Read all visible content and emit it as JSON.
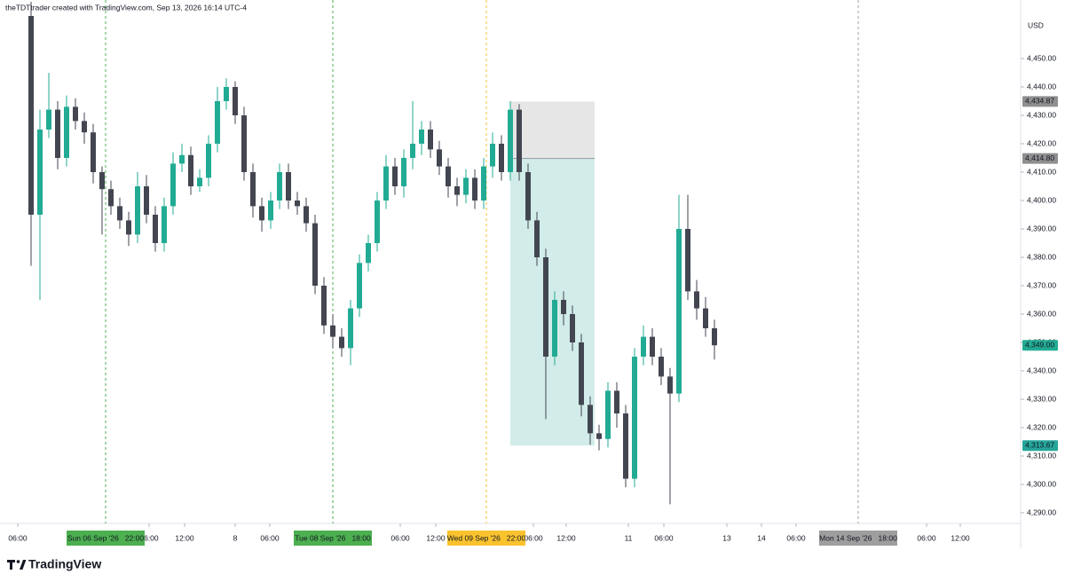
{
  "header": "theTDTtrader created with TradingView.com, Sep 13, 2026 16:14 UTC-4",
  "footer_brand": "TradingView",
  "chart_data": {
    "type": "candlestick",
    "currency": "USD",
    "up_color": "#22ab94",
    "down_color": "#434651",
    "xlim": [
      -3.5,
      111.5
    ],
    "ylim": [
      4286.25,
      4470.625
    ],
    "yticks": [
      {
        "value": 4290,
        "label": "4,290.00"
      },
      {
        "value": 4300,
        "label": "4,300.00"
      },
      {
        "value": 4310,
        "label": "4,310.00"
      },
      {
        "value": 4320,
        "label": "4,320.00"
      },
      {
        "value": 4330,
        "label": "4,330.00"
      },
      {
        "value": 4340,
        "label": "4,340.00"
      },
      {
        "value": 4350,
        "label": "4,350.00"
      },
      {
        "value": 4360,
        "label": "4,360.00"
      },
      {
        "value": 4370,
        "label": "4,370.00"
      },
      {
        "value": 4380,
        "label": "4,380.00"
      },
      {
        "value": 4390,
        "label": "4,390.00"
      },
      {
        "value": 4400,
        "label": "4,400.00"
      },
      {
        "value": 4410,
        "label": "4,410.00"
      },
      {
        "value": 4420,
        "label": "4,420.00"
      },
      {
        "value": 4430,
        "label": "4,430.00"
      },
      {
        "value": 4440,
        "label": "4,440.00"
      },
      {
        "value": 4450,
        "label": "4,450.00"
      }
    ],
    "xticks": [
      {
        "value": -1.5,
        "label": "06:00"
      },
      {
        "value": 13.3,
        "label": "06:00"
      },
      {
        "value": 17.3,
        "label": "12:00"
      },
      {
        "value": 23,
        "label": "8"
      },
      {
        "value": 26.9,
        "label": "06:00"
      },
      {
        "value": 41.6,
        "label": "06:00"
      },
      {
        "value": 45.6,
        "label": "12:00"
      },
      {
        "value": 56.6,
        "label": "06:00"
      },
      {
        "value": 60.3,
        "label": "12:00"
      },
      {
        "value": 67.3,
        "label": "11"
      },
      {
        "value": 71.3,
        "label": "06:00"
      },
      {
        "value": 78.4,
        "label": "13"
      },
      {
        "value": 82.3,
        "label": "14"
      },
      {
        "value": 86.2,
        "label": "06:00"
      },
      {
        "value": 100.9,
        "label": "06:00"
      },
      {
        "value": 104.7,
        "label": "12:00"
      }
    ],
    "session_marks": [
      {
        "value": 8.4,
        "label": "Sun 06 Sep '26   22:00",
        "color": "#4caf50"
      },
      {
        "value": 34,
        "label": "Tue 08 Sep '26   18:00",
        "color": "#4caf50"
      },
      {
        "value": 51.3,
        "label": "Wed 09 Sep '26   22:00",
        "color": "#f9c22e"
      },
      {
        "value": 93.2,
        "label": "Mon 14 Sep '26   18:00",
        "color": "#9e9e9e"
      }
    ],
    "open": [
      4465,
      4395,
      4425,
      4432,
      4415,
      4433,
      4428,
      4424,
      4410,
      4404,
      4398,
      4393,
      4388,
      4405,
      4395,
      4385,
      4398,
      4413,
      4416,
      4405,
      4408,
      4420,
      4435,
      4440,
      4430,
      4410,
      4398,
      4393,
      4400,
      4410,
      4400,
      4398,
      4392,
      4370,
      4356,
      4352,
      4348,
      4362,
      4378,
      4385,
      4400,
      4412,
      4405,
      4415,
      4420,
      4425,
      4418,
      4412,
      4405,
      4402,
      4408,
      4400,
      4412,
      4420,
      4410,
      4432,
      4410,
      4393,
      4380,
      4345,
      4365,
      4360,
      4350,
      4328,
      4318,
      4316,
      4333,
      4325,
      4302,
      4345,
      4352,
      4345,
      4338,
      4332,
      4390,
      4368,
      4362,
      4355
    ],
    "high": [
      4470,
      4432,
      4445,
      4435,
      4437,
      4436,
      4431,
      4427,
      4412,
      4407,
      4401,
      4396,
      4410,
      4409,
      4398,
      4401,
      4417,
      4420,
      4419,
      4411,
      4423,
      4440,
      4443,
      4442,
      4433,
      4413,
      4401,
      4403,
      4413,
      4413,
      4403,
      4401,
      4395,
      4373,
      4360,
      4355,
      4365,
      4381,
      4388,
      4403,
      4416,
      4415,
      4418,
      4435,
      4428,
      4428,
      4421,
      4415,
      4408,
      4411,
      4411,
      4415,
      4424,
      4423,
      4435,
      4434,
      4413,
      4396,
      4383,
      4368,
      4368,
      4363,
      4353,
      4331,
      4321,
      4336,
      4336,
      4328,
      4348,
      4356,
      4355,
      4348,
      4341,
      4402,
      4402,
      4372,
      4366,
      4358
    ],
    "low": [
      4377,
      4365,
      4422,
      4411,
      4412,
      4425,
      4420,
      4406,
      4388,
      4395,
      4390,
      4384,
      4385,
      4392,
      4382,
      4382,
      4395,
      4410,
      4402,
      4403,
      4405,
      4417,
      4432,
      4427,
      4407,
      4394,
      4389,
      4390,
      4397,
      4397,
      4395,
      4389,
      4367,
      4353,
      4348,
      4345,
      4342,
      4359,
      4375,
      4382,
      4397,
      4402,
      4401,
      4411,
      4416,
      4415,
      4409,
      4401,
      4398,
      4399,
      4397,
      4397,
      4408,
      4407,
      4407,
      4407,
      4390,
      4377,
      4323,
      4342,
      4356,
      4347,
      4324,
      4314,
      4312,
      4313,
      4320,
      4299,
      4299,
      4342,
      4342,
      4335,
      4293,
      4329,
      4365,
      4358,
      4352,
      4344
    ],
    "close": [
      4395,
      4425,
      4432,
      4415,
      4433,
      4428,
      4424,
      4410,
      4404,
      4398,
      4393,
      4388,
      4405,
      4395,
      4385,
      4398,
      4413,
      4416,
      4405,
      4408,
      4420,
      4435,
      4440,
      4430,
      4410,
      4398,
      4393,
      4400,
      4410,
      4400,
      4398,
      4392,
      4370,
      4356,
      4352,
      4348,
      4362,
      4378,
      4385,
      4400,
      4412,
      4405,
      4415,
      4420,
      4425,
      4418,
      4412,
      4405,
      4402,
      4408,
      4400,
      4412,
      4420,
      4410,
      4432,
      4410,
      4393,
      4380,
      4345,
      4365,
      4360,
      4350,
      4328,
      4318,
      4316,
      4333,
      4325,
      4302,
      4345,
      4352,
      4345,
      4338,
      4332,
      4390,
      4368,
      4362,
      4355,
      4349
    ],
    "position": {
      "x_start": 54,
      "x_end": 63.5,
      "stop": 4434.87,
      "entry": 4414.8,
      "target": 4313.67,
      "risk_color": "#e6e6e6",
      "reward_color": "#d2ece9"
    },
    "price_labels": [
      {
        "value": 4434.87,
        "label": "4,434.87",
        "color": "#8f8f8f"
      },
      {
        "value": 4414.8,
        "label": "4,414.80",
        "color": "#8f8f8f"
      },
      {
        "value": 4349,
        "label": "4,349.00",
        "color": "#22ab94"
      },
      {
        "value": 4313.67,
        "label": "4,313.67",
        "color": "#26a69a"
      }
    ]
  }
}
